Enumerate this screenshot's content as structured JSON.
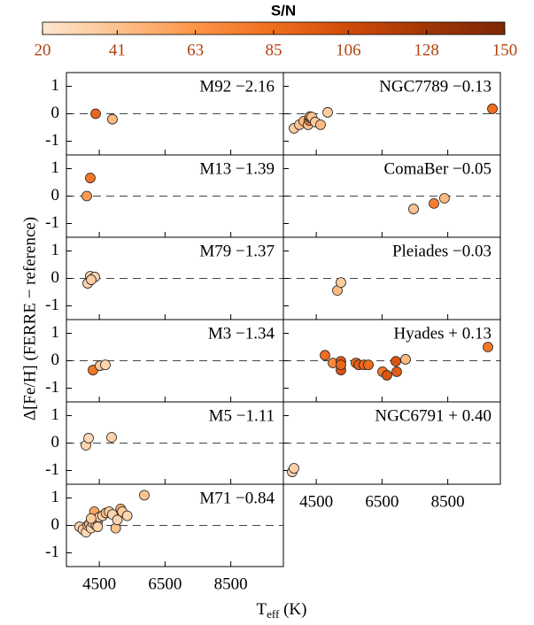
{
  "chart_data": {
    "type": "scatter",
    "title": "S/N",
    "colorbar": {
      "lim": [
        20,
        150
      ],
      "ticks": [
        20,
        41,
        63,
        85,
        106,
        128,
        150
      ],
      "colors": [
        "#fee6ce",
        "#fdc08a",
        "#fd9446",
        "#f06d1e",
        "#d04a08",
        "#a03504",
        "#7f2704"
      ]
    },
    "xlabel": [
      "T",
      "eff",
      " (K)"
    ],
    "ylabel": "Δ[Fe/H] (FERRE − reference)",
    "xlim": [
      3500,
      10100
    ],
    "xticks": [
      4500,
      6500,
      8500
    ],
    "ylim": [
      -1.5,
      1.5
    ],
    "yticks": [
      -1,
      0,
      1
    ],
    "reference_line": 0,
    "panels": [
      {
        "label": "M92  −2.16",
        "x": [
          4390,
          4900
        ],
        "y": [
          0.0,
          -0.2
        ],
        "sn": [
          90,
          45
        ]
      },
      {
        "label": "M13  −1.39",
        "x": [
          4227,
          4120
        ],
        "y": [
          0.66,
          0.0
        ],
        "sn": [
          80,
          60
        ]
      },
      {
        "label": "M79  −1.37",
        "x": [
          4147,
          4227,
          4362,
          4254
        ],
        "y": [
          -0.18,
          0.08,
          0.05,
          -0.05
        ],
        "sn": [
          30,
          32,
          28,
          35
        ]
      },
      {
        "label": "M3  −1.34",
        "x": [
          4308,
          4524,
          4685
        ],
        "y": [
          -0.34,
          -0.18,
          -0.15
        ],
        "sn": [
          80,
          35,
          30
        ]
      },
      {
        "label": "M5  −1.11",
        "x": [
          4093,
          4174,
          4874
        ],
        "y": [
          -0.08,
          0.18,
          0.21
        ],
        "sn": [
          30,
          28,
          32
        ]
      },
      {
        "label": "M71  −0.84",
        "x": [
          3900,
          4000,
          4100,
          4150,
          4200,
          4250,
          4300,
          4350,
          4350,
          4400,
          4450,
          4500,
          4600,
          4700,
          4800,
          4900,
          5000,
          5050,
          5150,
          5200,
          5350,
          5870,
          4450,
          4250
        ],
        "y": [
          -0.05,
          -0.15,
          -0.25,
          0.0,
          0.05,
          -0.1,
          0.1,
          0.2,
          0.5,
          0.0,
          0.15,
          0.3,
          0.35,
          0.45,
          0.5,
          0.4,
          -0.1,
          0.2,
          0.6,
          0.5,
          0.35,
          1.1,
          -0.05,
          0.25
        ],
        "sn": [
          30,
          35,
          28,
          40,
          45,
          30,
          35,
          75,
          55,
          30,
          40,
          35,
          30,
          45,
          35,
          30,
          40,
          30,
          50,
          35,
          30,
          40,
          30,
          35
        ]
      },
      {
        "label": "NGC7789  −0.13",
        "x": [
          3823,
          3985,
          4120,
          4254,
          4281,
          4308,
          4308,
          4362,
          4470,
          4631,
          4847,
          9858
        ],
        "y": [
          -0.53,
          -0.4,
          -0.27,
          -0.4,
          -0.24,
          -0.15,
          -0.1,
          -0.12,
          -0.3,
          -0.4,
          0.05,
          0.18
        ],
        "sn": [
          35,
          40,
          45,
          40,
          70,
          45,
          60,
          40,
          35,
          45,
          35,
          85
        ]
      },
      {
        "label": "ComaBer  −0.05",
        "x": [
          7460,
          8080,
          8400
        ],
        "y": [
          -0.47,
          -0.27,
          -0.08
        ],
        "sn": [
          40,
          75,
          45
        ]
      },
      {
        "label": "Pleiades  −0.03",
        "x": [
          5143,
          5250
        ],
        "y": [
          -0.44,
          -0.15
        ],
        "sn": [
          45,
          35
        ]
      },
      {
        "label": "Hyades  + 0.13",
        "x": [
          4766,
          5009,
          5250,
          5250,
          5250,
          5709,
          5790,
          5951,
          6086,
          6517,
          6651,
          6948,
          6921,
          7217,
          9723
        ],
        "y": [
          0.2,
          -0.08,
          -0.02,
          -0.34,
          -0.15,
          -0.08,
          -0.15,
          -0.15,
          -0.15,
          -0.4,
          -0.53,
          -0.4,
          -0.02,
          0.05,
          0.5
        ],
        "sn": [
          85,
          70,
          95,
          100,
          90,
          85,
          95,
          90,
          85,
          80,
          100,
          95,
          100,
          45,
          80
        ]
      },
      {
        "label": "NGC6791  + 0.40",
        "x": [
          3769,
          3823
        ],
        "y": [
          -1.05,
          -0.92
        ],
        "sn": [
          30,
          32
        ]
      }
    ]
  }
}
